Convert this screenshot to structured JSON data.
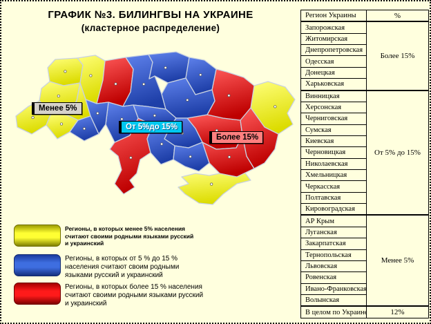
{
  "title": {
    "line1": "ГРАФИК №3. БИЛИНГВЫ НА УКРАИНЕ",
    "line2": "(кластерное распределение)"
  },
  "colors": {
    "page_background": "#FFFFDE",
    "cluster_yellow": "#EDED00",
    "cluster_blue": "#2E54C8",
    "cluster_red": "#D40000",
    "region_border": "#C9D2E0"
  },
  "map_labels": [
    {
      "key": "less5",
      "text": "Менее 5%",
      "bg": "#D6D2CA",
      "color": "#000000"
    },
    {
      "key": "mid",
      "text": "От 5%до 15%",
      "bg": "#00C8F0",
      "color": "#FFFFFF"
    },
    {
      "key": "more15",
      "text": "Более 15%",
      "bg": "#FF8080",
      "color": "#000000"
    }
  ],
  "legend": [
    {
      "key": "less5",
      "bold": true,
      "text": "Регионы, в которых менее 5% населения считают своими родными языками русский и украинский",
      "swatch": {
        "border": "#6E6E00",
        "top": "#9C9C00",
        "light": "#FFFF33",
        "bottom": "#7F7F00"
      }
    },
    {
      "key": "mid",
      "bold": false,
      "text": "Регионы, в которых от 5 % до 15 % населения считают своим родными языками русский и украинский",
      "swatch": {
        "border": "#142B6E",
        "top": "#1B3B9E",
        "light": "#3E6EE0",
        "bottom": "#14307E"
      }
    },
    {
      "key": "more15",
      "bold": false,
      "text": "Регионы, в которых более 15 % населения считают своими родными языками русский и украинский",
      "swatch": {
        "border": "#6E0000",
        "top": "#A40000",
        "light": "#FF1A1A",
        "bottom": "#7E0000"
      }
    }
  ],
  "table": {
    "header": {
      "region": "Регион Украины",
      "percent": "%"
    },
    "groups": [
      {
        "label": "Более 15%",
        "regions": [
          "Запорожская",
          "Житомирская",
          "Днепропетровская",
          "Одесская",
          "Донецкая",
          "Харьковская"
        ]
      },
      {
        "label": "От 5% до 15%",
        "regions": [
          "Винницкая",
          "Херсонская",
          "Черниговская",
          "Сумская",
          "Киевская",
          "Черновицкая",
          "Николаевская",
          "Хмельницкая",
          "Черкасская",
          "Полтавская",
          "Кировоградская"
        ]
      },
      {
        "label": "Менее 5%",
        "regions": [
          "АР Крым",
          "Луганская",
          "Закарпатская",
          "Тернопольская",
          "Львовская",
          "Ровенская",
          "Ивано-Франковская",
          "Волынская"
        ]
      }
    ],
    "total": {
      "region": "В целом по Украине",
      "percent": "12%"
    }
  },
  "map": {
    "fill": {
      "less5": {
        "light": "#FFFF7A",
        "dark": "#DCDC00"
      },
      "mid": {
        "light": "#5F82EC",
        "dark": "#1E3FA8"
      },
      "more15": {
        "light": "#FF5A5A",
        "dark": "#BE0000"
      }
    },
    "regions": [
      {
        "key": "volyn",
        "name": "Волынская",
        "group": "less5"
      },
      {
        "key": "rivne",
        "name": "Ровенская",
        "group": "less5"
      },
      {
        "key": "lviv",
        "name": "Львовская",
        "group": "less5"
      },
      {
        "key": "ternopil",
        "name": "Тернопольская",
        "group": "less5"
      },
      {
        "key": "zakarpattia",
        "name": "Закарпатская",
        "group": "less5"
      },
      {
        "key": "ivano_frankivsk",
        "name": "Ивано-Франковская",
        "group": "less5"
      },
      {
        "key": "luhansk",
        "name": "Луганская",
        "group": "less5"
      },
      {
        "key": "crimea",
        "name": "АР Крым",
        "group": "less5"
      },
      {
        "key": "zhytomyr",
        "name": "Житомирская",
        "group": "more15"
      },
      {
        "key": "odesa",
        "name": "Одесская",
        "group": "more15"
      },
      {
        "key": "dnipro",
        "name": "Днепропетровская",
        "group": "more15"
      },
      {
        "key": "zaporizhzhia",
        "name": "Запорожская",
        "group": "more15"
      },
      {
        "key": "donetsk",
        "name": "Донецкая",
        "group": "more15"
      },
      {
        "key": "kharkiv",
        "name": "Харьковская",
        "group": "more15"
      },
      {
        "key": "kyiv",
        "name": "Киевская",
        "group": "mid"
      },
      {
        "key": "chernihiv",
        "name": "Черниговская",
        "group": "mid"
      },
      {
        "key": "sumy",
        "name": "Сумская",
        "group": "mid"
      },
      {
        "key": "poltava",
        "name": "Полтавская",
        "group": "mid"
      },
      {
        "key": "cherkasy",
        "name": "Черкасская",
        "group": "mid"
      },
      {
        "key": "kirovohrad",
        "name": "Кировоградская",
        "group": "mid"
      },
      {
        "key": "mykolaiv",
        "name": "Николаевская",
        "group": "mid"
      },
      {
        "key": "kherson",
        "name": "Херсонская",
        "group": "mid"
      },
      {
        "key": "vinnytsia",
        "name": "Винницкая",
        "group": "mid"
      },
      {
        "key": "khmelnytskyi",
        "name": "Хмельницкая",
        "group": "mid"
      },
      {
        "key": "chernivtsi",
        "name": "Черновицкая",
        "group": "mid"
      }
    ]
  },
  "chart_data": {
    "type": "table",
    "title": "ГРАФИК №3. БИЛИНГВЫ НА УКРАИНЕ (кластерное распределение)",
    "legend_position": "bottom-left",
    "groups": [
      {
        "value_range": "Более 15%",
        "regions": [
          "Запорожская",
          "Житомирская",
          "Днепропетровская",
          "Одесская",
          "Донецкая",
          "Харьковская"
        ]
      },
      {
        "value_range": "От 5% до 15%",
        "regions": [
          "Винницкая",
          "Херсонская",
          "Черниговская",
          "Сумская",
          "Киевская",
          "Черновицкая",
          "Николаевская",
          "Хмельницкая",
          "Черкасская",
          "Полтавская",
          "Кировоградская"
        ]
      },
      {
        "value_range": "Менее 5%",
        "regions": [
          "АР Крым",
          "Луганская",
          "Закарпатская",
          "Тернопольская",
          "Львовская",
          "Ровенская",
          "Ивано-Франковская",
          "Волынская"
        ]
      }
    ],
    "total": {
      "label": "В целом по Украине",
      "value": "12%"
    }
  }
}
